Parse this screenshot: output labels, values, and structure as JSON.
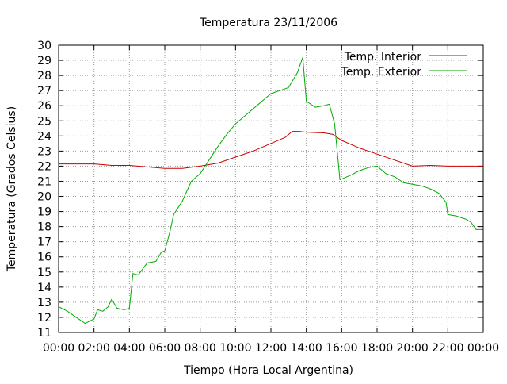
{
  "chart_data": {
    "type": "line",
    "title": "Temperatura 23/11/2006",
    "xlabel": "Tiempo (Hora Local Argentina)",
    "ylabel": "Temperatura (Grados Celsius)",
    "xlim": [
      0,
      24
    ],
    "ylim": [
      11,
      30
    ],
    "grid": true,
    "legend": "top-right",
    "x_tick_labels": [
      "00:00",
      "02:00",
      "04:00",
      "06:00",
      "08:00",
      "10:00",
      "12:00",
      "14:00",
      "16:00",
      "18:00",
      "20:00",
      "22:00",
      "00:00"
    ],
    "y_ticks": [
      11,
      12,
      13,
      14,
      15,
      16,
      17,
      18,
      19,
      20,
      21,
      22,
      23,
      24,
      25,
      26,
      27,
      28,
      29,
      30
    ],
    "series": [
      {
        "name": "Temp. Interior",
        "color": "#cc0000",
        "points": [
          [
            0,
            22.15
          ],
          [
            2,
            22.15
          ],
          [
            3,
            22.05
          ],
          [
            4,
            22.05
          ],
          [
            5,
            21.95
          ],
          [
            6,
            21.85
          ],
          [
            7,
            21.85
          ],
          [
            8,
            22.0
          ],
          [
            9,
            22.2
          ],
          [
            10,
            22.6
          ],
          [
            11,
            23.0
          ],
          [
            12,
            23.5
          ],
          [
            12.8,
            23.9
          ],
          [
            13.2,
            24.3
          ],
          [
            13.6,
            24.3
          ],
          [
            14,
            24.25
          ],
          [
            15,
            24.2
          ],
          [
            15.5,
            24.1
          ],
          [
            16,
            23.7
          ],
          [
            17,
            23.2
          ],
          [
            18,
            22.8
          ],
          [
            19,
            22.4
          ],
          [
            20,
            22.0
          ],
          [
            21,
            22.05
          ],
          [
            22,
            22.0
          ],
          [
            24,
            22.0
          ]
        ]
      },
      {
        "name": "Temp. Exterior",
        "color": "#00aa00",
        "points": [
          [
            0,
            12.7
          ],
          [
            0.5,
            12.4
          ],
          [
            1,
            12.0
          ],
          [
            1.5,
            11.6
          ],
          [
            2,
            11.9
          ],
          [
            2.2,
            12.5
          ],
          [
            2.5,
            12.4
          ],
          [
            2.8,
            12.7
          ],
          [
            3,
            13.2
          ],
          [
            3.3,
            12.6
          ],
          [
            3.7,
            12.5
          ],
          [
            4,
            12.6
          ],
          [
            4.2,
            14.9
          ],
          [
            4.5,
            14.8
          ],
          [
            5,
            15.6
          ],
          [
            5.5,
            15.7
          ],
          [
            5.8,
            16.3
          ],
          [
            6,
            16.4
          ],
          [
            6.3,
            17.7
          ],
          [
            6.5,
            18.8
          ],
          [
            7,
            19.7
          ],
          [
            7.5,
            21.0
          ],
          [
            8,
            21.5
          ],
          [
            8.5,
            22.4
          ],
          [
            9,
            23.3
          ],
          [
            9.5,
            24.1
          ],
          [
            10,
            24.8
          ],
          [
            10.5,
            25.3
          ],
          [
            11,
            25.8
          ],
          [
            11.5,
            26.3
          ],
          [
            12,
            26.8
          ],
          [
            12.5,
            27.0
          ],
          [
            13,
            27.2
          ],
          [
            13.5,
            28.2
          ],
          [
            13.8,
            29.2
          ],
          [
            14.0,
            26.3
          ],
          [
            14.5,
            25.9
          ],
          [
            15,
            26.0
          ],
          [
            15.3,
            26.1
          ],
          [
            15.6,
            24.8
          ],
          [
            15.9,
            21.1
          ],
          [
            16.5,
            21.4
          ],
          [
            17,
            21.7
          ],
          [
            17.5,
            21.9
          ],
          [
            18,
            22.0
          ],
          [
            18.5,
            21.5
          ],
          [
            19,
            21.3
          ],
          [
            19.5,
            20.9
          ],
          [
            20,
            20.8
          ],
          [
            20.5,
            20.7
          ],
          [
            21,
            20.5
          ],
          [
            21.5,
            20.2
          ],
          [
            21.9,
            19.6
          ],
          [
            22,
            18.8
          ],
          [
            22.5,
            18.7
          ],
          [
            23,
            18.5
          ],
          [
            23.3,
            18.3
          ],
          [
            23.6,
            17.8
          ],
          [
            24,
            17.8
          ]
        ]
      }
    ]
  }
}
